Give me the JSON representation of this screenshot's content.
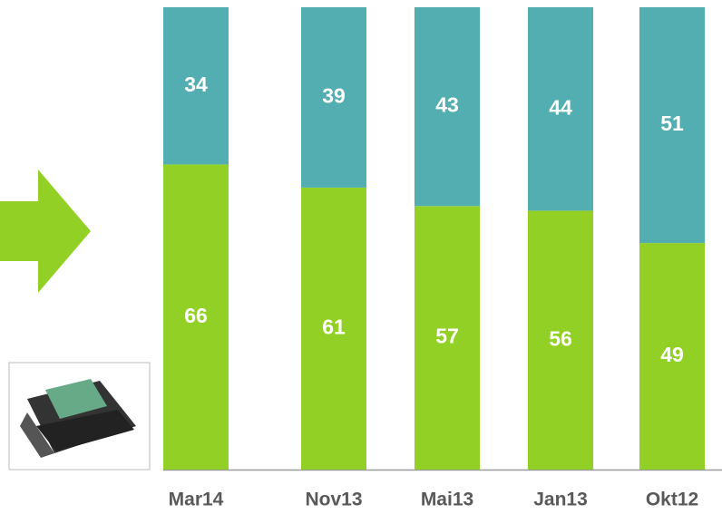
{
  "chart_data": {
    "type": "stacked_bar",
    "categories": [
      "Mar14",
      "Nov13",
      "Mai13",
      "Jan13",
      "Okt12"
    ],
    "series": [
      {
        "color": "#92d025",
        "values": [
          66,
          61,
          57,
          56,
          49
        ]
      },
      {
        "color": "#52aeb0",
        "values": [
          34,
          39,
          43,
          44,
          51
        ]
      }
    ],
    "ylim": [
      0,
      100
    ]
  }
}
